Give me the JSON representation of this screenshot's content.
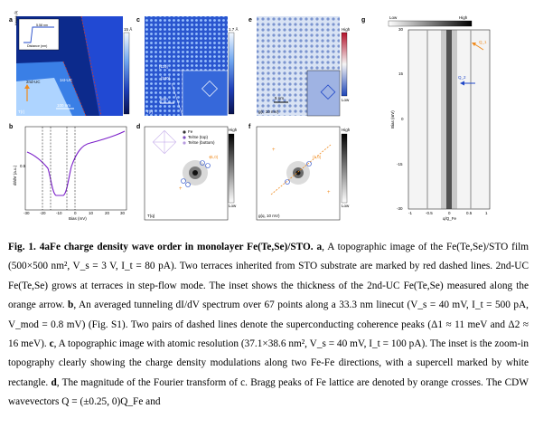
{
  "panels": {
    "a": {
      "letter": "a",
      "scale_max": "15 Å",
      "inset_ylabel": "Height (Å)",
      "inset_value": "5.58 nm",
      "inset_ticks": [
        "0",
        "40",
        "80"
      ],
      "inset_xlabel": "Distance (nm)",
      "label_2nd": "2nd-UC",
      "label_1st": "1st-UC",
      "scalebar": "100 nm",
      "mode": "T(r)"
    },
    "b": {
      "letter": "b",
      "ylabel": "dI/dV (a.u.)",
      "ytick": "0.5",
      "xticks": [
        "-30",
        "-20",
        "-10",
        "0",
        "10",
        "20",
        "30"
      ],
      "xlabel": "Bias (mV)"
    },
    "c": {
      "letter": "c",
      "scale_max": "1.7 Å",
      "dir1": "[110]",
      "dir2": "[100]",
      "scalebar": "5nm",
      "mode": "T(r)"
    },
    "d": {
      "letter": "d",
      "legend": [
        "Fe",
        "Te/Se (top)",
        "Te/Se (bottom)"
      ],
      "high": "High",
      "low": "Low",
      "peak": "(1,0)",
      "mode": "T(q)"
    },
    "e": {
      "letter": "e",
      "high": "High",
      "low": "Low",
      "scalebar": "5 nm",
      "mode": "g(r, 10 mV)"
    },
    "f": {
      "letter": "f",
      "high": "High",
      "low": "Low",
      "peak": "(1,0)",
      "mode": "g(q, 10 mV)"
    },
    "g": {
      "letter": "g",
      "low": "Low",
      "high": "High",
      "ylabel": "Bias (mV)",
      "yticks": [
        "30",
        "15",
        "0",
        "-15",
        "-30"
      ],
      "xticks": [
        "-1",
        "-0.5",
        "0",
        "0.5",
        "1"
      ],
      "xlabel": "q/Q_Fe",
      "q1": "Q_1",
      "q2": "Q_2"
    }
  },
  "caption": {
    "heading": "Fig. 1. 4aFe charge density wave order in monolayer Fe(Te,Se)/STO.",
    "a_label": "a",
    "a_text": ", A topographic image of the Fe(Te,Se)/STO film (500×500 nm², V_s = 3 V, I_t = 80 pA). Two terraces inherited from STO substrate are marked by red dashed lines. 2nd-UC Fe(Te,Se) grows at terraces in step-flow mode. The inset shows the thickness of the 2nd-UC Fe(Te,Se) measured along the orange arrow.",
    "b_label": "b",
    "b_text": ", An averaged tunneling dI/dV spectrum over 67 points along a 33.3 nm linecut (V_s = 40 mV, I_t = 500 pA, V_mod = 0.8 mV) (Fig. S1). Two pairs of dashed lines denote the superconducting coherence peaks (Δ1 ≈ 11 meV and Δ2 ≈ 16 meV).",
    "c_label": "c",
    "c_text": ", A topographic image with atomic resolution (37.1×38.6 nm², V_s = 40 mV, I_t = 100 pA). The inset is the zoom-in topography clearly showing the charge density modulations along two Fe-Fe directions, with a supercell marked by white rectangle.",
    "d_label": "d",
    "d_text": ", The magnitude of the Fourier transform of c. Bragg peaks of Fe lattice are denoted by orange crosses. The CDW wavevectors Q = (±0.25, 0)Q_Fe and"
  },
  "colors": {
    "topo_blue": "#1f47c8",
    "topo_dark": "#0a1a6b",
    "topo_light": "#cfe6ff",
    "spectrum": "#7a1ec9",
    "orange": "#f08a1c",
    "red_dash": "#d23a2a"
  }
}
